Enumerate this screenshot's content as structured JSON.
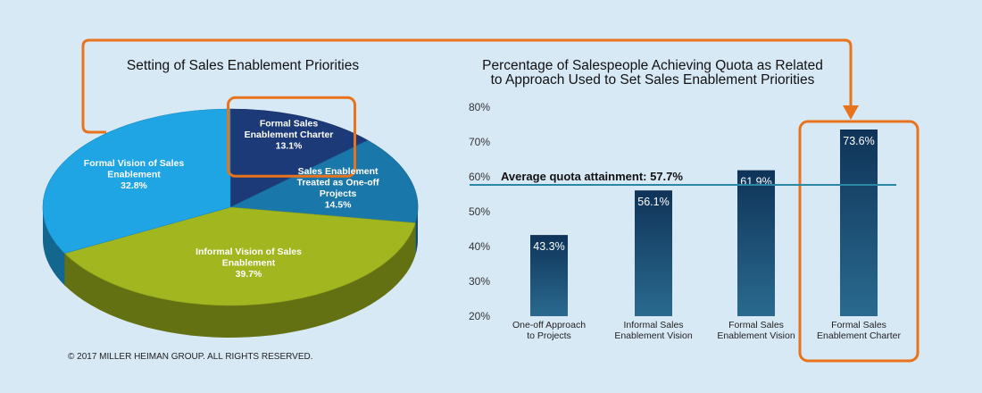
{
  "colors": {
    "background": "#d8e9f6",
    "orange": "#e8731c",
    "navy": "#1c3a78",
    "teal": "#1a77aa",
    "olive": "#a2b61f",
    "sky": "#1fa4e4",
    "bar": "#1e4e73",
    "avg_line": "#2a88a5"
  },
  "pie_title": "Setting of Sales Enablement Priorities",
  "bar_title_line1": "Percentage of Salespeople Achieving Quota as Related",
  "bar_title_line2": "to Approach Used to Set Sales Enablement Priorities",
  "copyright": "© 2017 MILLER HEIMAN GROUP. ALL RIGHTS RESERVED.",
  "avg_label": "Average quota attainment: 57.7%",
  "chart_data": [
    {
      "type": "pie",
      "title": "Setting of Sales Enablement Priorities",
      "slices": [
        {
          "label": "Formal Sales Enablement Charter",
          "value": 13.1,
          "value_label": "13.1%",
          "label_lines": [
            "Formal Sales",
            "Enablement Charter"
          ],
          "color": "#1c3a78",
          "highlighted": true
        },
        {
          "label": "Sales Enablement Treated as One-off Projects",
          "value": 14.5,
          "value_label": "14.5%",
          "label_lines": [
            "Sales Enablement",
            "Treated as One-off",
            "Projects"
          ],
          "color": "#1a77aa"
        },
        {
          "label": "Informal Vision of Sales Enablement",
          "value": 39.7,
          "value_label": "39.7%",
          "label_lines": [
            "Informal Vision of Sales",
            "Enablement"
          ],
          "color": "#a2b61f"
        },
        {
          "label": "Formal Vision of Sales Enablement",
          "value": 32.8,
          "value_label": "32.8%",
          "label_lines": [
            "Formal Vision of Sales",
            "Enablement"
          ],
          "color": "#1fa4e4"
        }
      ]
    },
    {
      "type": "bar",
      "title": "Percentage of Salespeople Achieving Quota as Related to Approach Used to Set Sales Enablement Priorities",
      "categories": [
        "One-off Approach to Projects",
        "Informal Sales Enablement Vision",
        "Formal Sales Enablement Vision",
        "Formal Sales Enablement Charter"
      ],
      "category_lines": [
        [
          "One-off Approach",
          "to Projects"
        ],
        [
          "Informal Sales",
          "Enablement Vision"
        ],
        [
          "Formal Sales",
          "Enablement Vision"
        ],
        [
          "Formal Sales",
          "Enablement Charter"
        ]
      ],
      "values": [
        43.3,
        56.1,
        61.9,
        73.6
      ],
      "value_labels": [
        "43.3%",
        "56.1%",
        "61.9%",
        "73.6%"
      ],
      "ylim": [
        20,
        80
      ],
      "yticks": [
        20,
        30,
        40,
        50,
        60,
        70,
        80
      ],
      "ytick_labels": [
        "20%",
        "30%",
        "40%",
        "50%",
        "60%",
        "70%",
        "80%"
      ],
      "reference_line": {
        "value": 57.7,
        "label": "Average quota attainment: 57.7%"
      },
      "highlighted_category": "Formal Sales Enablement Charter",
      "grid": false
    }
  ]
}
